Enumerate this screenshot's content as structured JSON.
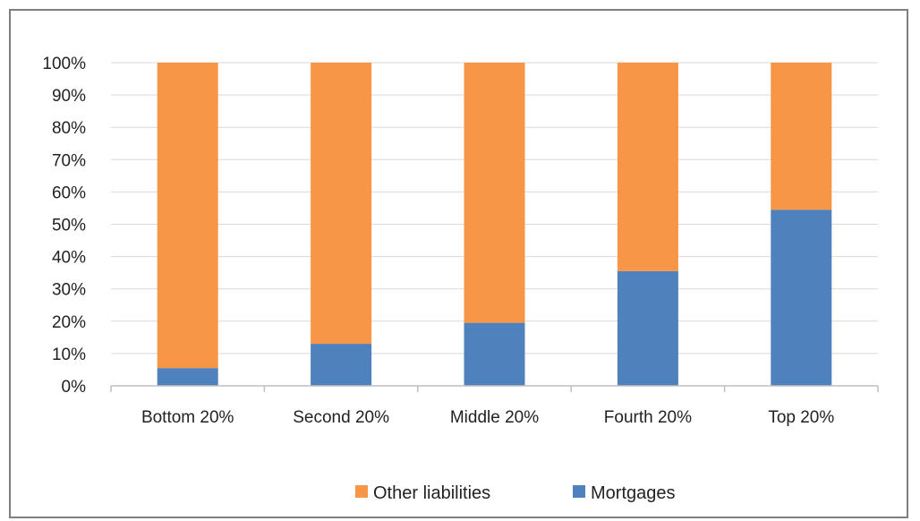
{
  "chart_data": {
    "type": "bar",
    "stacked": true,
    "categories": [
      "Bottom 20%",
      "Second 20%",
      "Middle 20%",
      "Fourth 20%",
      "Top 20%"
    ],
    "series": [
      {
        "name": "Mortgages",
        "color": "#4f81bd",
        "values": [
          5.5,
          13,
          19.5,
          35.5,
          54.5
        ]
      },
      {
        "name": "Other liabilities",
        "color": "#f79646",
        "values": [
          94.5,
          87,
          80.5,
          64.5,
          45.5
        ]
      }
    ],
    "ylim": [
      0,
      100
    ],
    "yticks": [
      0,
      10,
      20,
      30,
      40,
      50,
      60,
      70,
      80,
      90,
      100
    ],
    "ytick_labels": [
      "0%",
      "10%",
      "20%",
      "30%",
      "40%",
      "50%",
      "60%",
      "70%",
      "80%",
      "90%",
      "100%"
    ],
    "grid": true,
    "legend": {
      "position": "bottom",
      "entries": [
        "Other liabilities",
        "Mortgages"
      ]
    },
    "title": "",
    "xlabel": "",
    "ylabel": ""
  }
}
